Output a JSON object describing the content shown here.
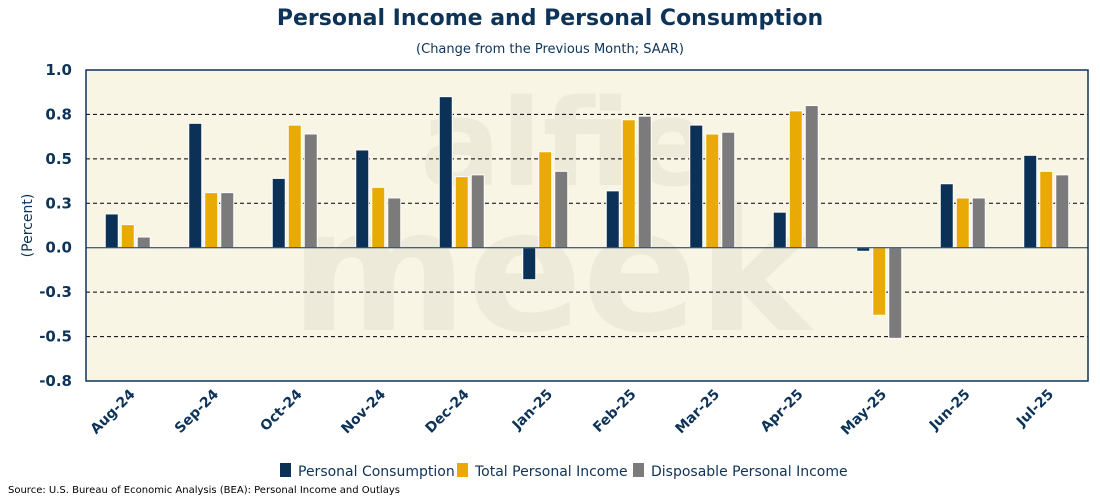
{
  "chart_data": {
    "type": "bar",
    "title": "Personal Income and Personal Consumption",
    "subtitle": "(Change from the Previous Month; SAAR)",
    "ylabel": "(Percent)",
    "xlabel": "",
    "ylim": [
      -0.75,
      1.0
    ],
    "yticks": [
      1.0,
      0.75,
      0.5,
      0.25,
      0.0,
      -0.25,
      -0.5,
      -0.75
    ],
    "ytick_labels": [
      "1.0",
      "0.8",
      "0.5",
      "0.3",
      "0.0",
      "-0.3",
      "-0.5",
      "-0.8"
    ],
    "grid": "horizontal dashed",
    "legend_position": "bottom",
    "categories": [
      "Aug-24",
      "Sep-24",
      "Oct-24",
      "Nov-24",
      "Dec-24",
      "Jan-25",
      "Feb-25",
      "Mar-25",
      "Apr-25",
      "May-25",
      "Jun-25",
      "Jul-25"
    ],
    "series": [
      {
        "name": "Personal Consumption",
        "color": "#0b3157",
        "values": [
          0.19,
          0.7,
          0.39,
          0.55,
          0.85,
          -0.18,
          0.32,
          0.69,
          0.2,
          -0.02,
          0.36,
          0.52
        ]
      },
      {
        "name": "Total Personal Income",
        "color": "#e9aa06",
        "values": [
          0.13,
          0.31,
          0.69,
          0.34,
          0.4,
          0.54,
          0.72,
          0.64,
          0.77,
          -0.38,
          0.28,
          0.43
        ]
      },
      {
        "name": "Disposable Personal Income",
        "color": "#7b7b7b",
        "values": [
          0.06,
          0.31,
          0.64,
          0.28,
          0.41,
          0.43,
          0.74,
          0.65,
          0.8,
          -0.51,
          0.28,
          0.41
        ]
      }
    ]
  },
  "source": "Source: U.S. Bureau of Economic Analysis (BEA): Personal Income and Outlays"
}
